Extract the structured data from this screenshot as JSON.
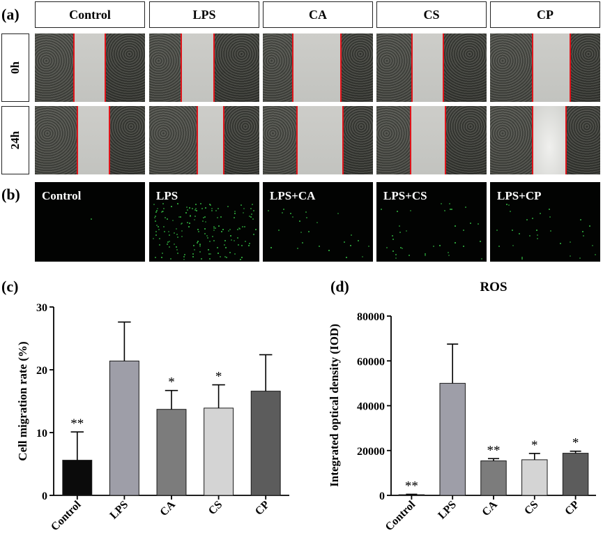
{
  "panel_labels": {
    "a": "(a)",
    "b": "(b)",
    "c": "(c)",
    "d": "(d)"
  },
  "panel_a": {
    "column_headers": [
      "Control",
      "LPS",
      "CA",
      "CS",
      "CP"
    ],
    "row_labels": [
      "0h",
      "24h"
    ],
    "line_color": "#e0141a"
  },
  "panel_b": {
    "labels": [
      "Control",
      "LPS",
      "LPS+CA",
      "LPS+CS",
      "LPS+CP"
    ],
    "fluorescence_color": "#39d04a"
  },
  "chart_data": [
    {
      "type": "bar",
      "title": "",
      "ylabel": "Cell migration rate (%)",
      "xlabel": "",
      "categories": [
        "Control",
        "LPS",
        "CA",
        "CS",
        "CP"
      ],
      "values": [
        5.6,
        21.4,
        13.7,
        13.9,
        16.6
      ],
      "errors": [
        4.5,
        6.2,
        3.0,
        3.7,
        5.8
      ],
      "significance": [
        "**",
        "",
        "*",
        "*",
        ""
      ],
      "colors": [
        "#0b0b0b",
        "#9e9ea8",
        "#7c7c7c",
        "#d4d4d4",
        "#5c5c5c"
      ],
      "ylim": [
        0,
        30
      ],
      "yticks": [
        "0",
        "10",
        "20",
        "30"
      ],
      "grid": false
    },
    {
      "type": "bar",
      "title": "ROS",
      "ylabel": "Integrated optical density (IOD)",
      "xlabel": "",
      "categories": [
        "Control",
        "LPS",
        "CA",
        "CS",
        "CP"
      ],
      "values": [
        300,
        50000,
        15400,
        15900,
        18800
      ],
      "errors": [
        200,
        17500,
        1000,
        2800,
        900
      ],
      "significance": [
        "**",
        "",
        "**",
        "*",
        "*"
      ],
      "colors": [
        "#0b0b0b",
        "#9e9ea8",
        "#7c7c7c",
        "#d4d4d4",
        "#5c5c5c"
      ],
      "ylim": [
        0,
        80000
      ],
      "yticks": [
        "0",
        "20000",
        "40000",
        "60000",
        "80000"
      ],
      "grid": false
    }
  ]
}
